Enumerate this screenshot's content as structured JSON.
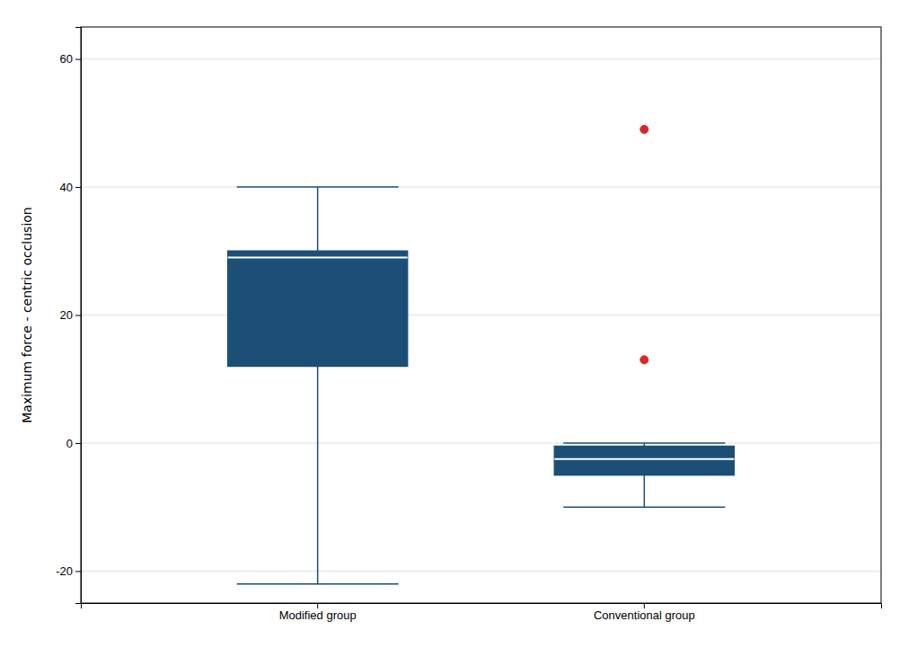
{
  "chart_data": {
    "type": "box",
    "categories": [
      "Modified group",
      "Conventional group"
    ],
    "whisker_low": [
      -22,
      -10
    ],
    "q1": [
      12,
      -5
    ],
    "median": [
      29,
      -2.5
    ],
    "q3": [
      30,
      -0.5
    ],
    "whisker_high": [
      40,
      0
    ],
    "outliers": [
      [],
      [
        13,
        49
      ]
    ],
    "color": "#1c4f76",
    "ylabel": "Maximum force - centric occlusion",
    "ylim": [
      -25,
      65
    ],
    "yticks": [
      -20,
      0,
      20,
      40,
      60
    ],
    "grid": true
  }
}
